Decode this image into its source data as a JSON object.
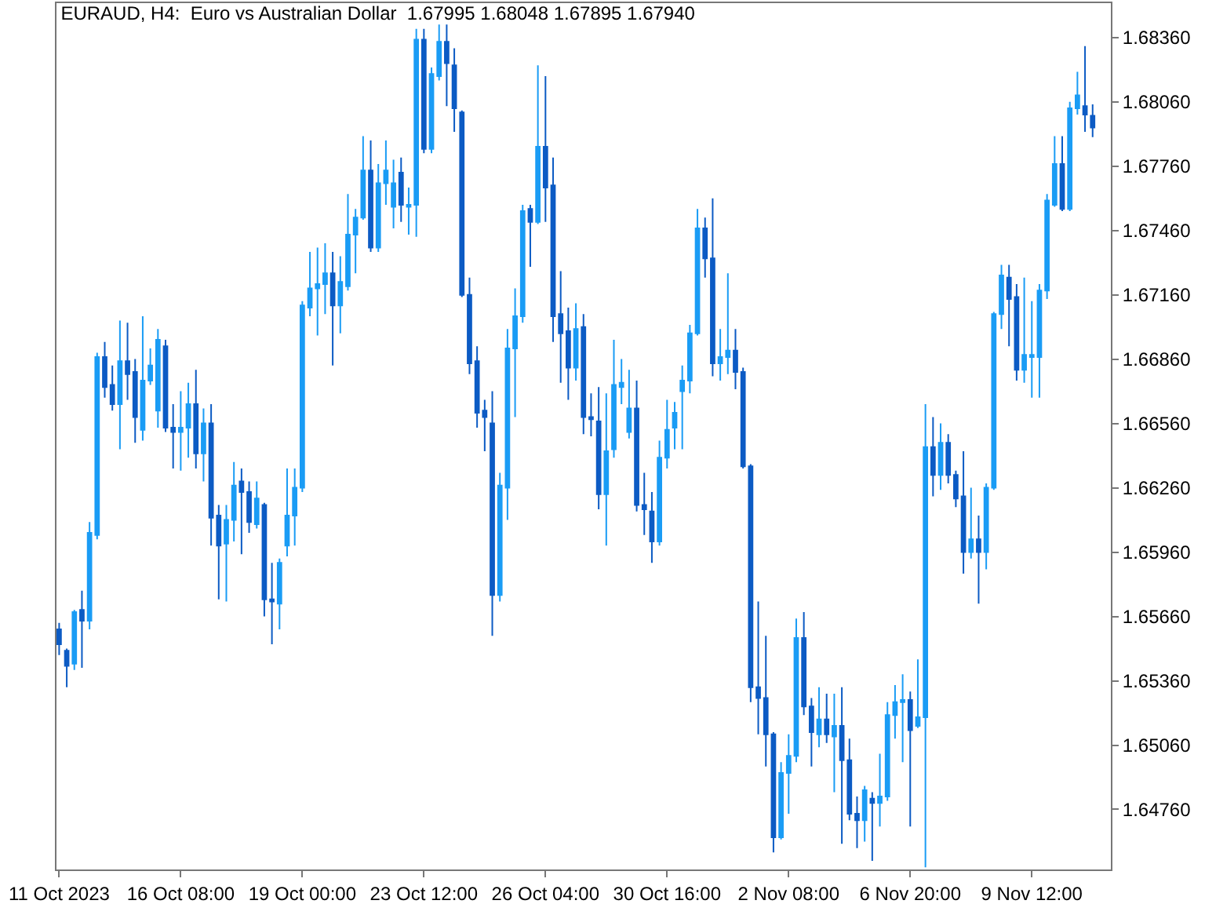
{
  "chart_data": {
    "type": "candlestick",
    "title": "EURAUD, H4:  Euro vs Australian Dollar  1.67995 1.68048 1.67895 1.67940",
    "categories": [
      "11 Oct 2023",
      null,
      null,
      null,
      null,
      null,
      null,
      null,
      null,
      null,
      null,
      null,
      null,
      null,
      null,
      null,
      "16 Oct 08:00",
      null,
      null,
      null,
      null,
      null,
      null,
      null,
      null,
      null,
      null,
      null,
      null,
      null,
      null,
      null,
      "19 Oct 00:00",
      null,
      null,
      null,
      null,
      null,
      null,
      null,
      null,
      null,
      null,
      null,
      null,
      null,
      null,
      null,
      "23 Oct 12:00",
      null,
      null,
      null,
      null,
      null,
      null,
      null,
      null,
      null,
      null,
      null,
      null,
      null,
      null,
      null,
      "26 Oct 04:00",
      null,
      null,
      null,
      null,
      null,
      null,
      null,
      null,
      null,
      null,
      null,
      null,
      null,
      null,
      null,
      "30 Oct 16:00",
      null,
      null,
      null,
      null,
      null,
      null,
      null,
      null,
      null,
      null,
      null,
      null,
      null,
      null,
      null,
      "2 Nov 08:00",
      null,
      null,
      null,
      null,
      null,
      null,
      null,
      null,
      null,
      null,
      null,
      null,
      null,
      null,
      null,
      "6 Nov 20:00",
      null,
      null,
      null,
      null,
      null,
      null,
      null,
      null,
      null,
      null,
      null,
      null,
      null,
      null,
      null,
      "9 Nov 12:00",
      null,
      null,
      null,
      null,
      null,
      null,
      null,
      null
    ],
    "ohlc": [
      [
        1.656,
        1.6563,
        1.6548,
        1.6553
      ],
      [
        1.655,
        1.6551,
        1.6533,
        1.6543
      ],
      [
        1.6544,
        1.6569,
        1.6541,
        1.6568
      ],
      [
        1.6569,
        1.6578,
        1.6542,
        1.6564
      ],
      [
        1.6564,
        1.661,
        1.656,
        1.6605
      ],
      [
        1.6604,
        1.6689,
        1.6602,
        1.6687
      ],
      [
        1.6687,
        1.6694,
        1.6668,
        1.6673
      ],
      [
        1.6674,
        1.6683,
        1.6662,
        1.6665
      ],
      [
        1.6665,
        1.6704,
        1.6644,
        1.6685
      ],
      [
        1.6685,
        1.6703,
        1.6667,
        1.6679
      ],
      [
        1.668,
        1.6686,
        1.6647,
        1.6659
      ],
      [
        1.6653,
        1.6706,
        1.6648,
        1.6676
      ],
      [
        1.6676,
        1.6691,
        1.6674,
        1.6683
      ],
      [
        1.6662,
        1.67,
        1.6654,
        1.6695
      ],
      [
        1.6692,
        1.6695,
        1.6652,
        1.6654
      ],
      [
        1.6654,
        1.6665,
        1.6635,
        1.6652
      ],
      [
        1.6652,
        1.6671,
        1.6634,
        1.6654
      ],
      [
        1.6654,
        1.6675,
        1.664,
        1.6665
      ],
      [
        1.6665,
        1.6681,
        1.6635,
        1.6642
      ],
      [
        1.6642,
        1.6663,
        1.6629,
        1.6656
      ],
      [
        1.6656,
        1.6665,
        1.6599,
        1.6612
      ],
      [
        1.6613,
        1.6618,
        1.6574,
        1.6599
      ],
      [
        1.66,
        1.6618,
        1.6573,
        1.6611
      ],
      [
        1.6611,
        1.6638,
        1.6601,
        1.6627
      ],
      [
        1.6629,
        1.6635,
        1.6595,
        1.6624
      ],
      [
        1.6624,
        1.6629,
        1.6605,
        1.661
      ],
      [
        1.6609,
        1.6629,
        1.6607,
        1.6621
      ],
      [
        1.6618,
        1.6619,
        1.6566,
        1.6574
      ],
      [
        1.6574,
        1.6591,
        1.6553,
        1.6573
      ],
      [
        1.6572,
        1.6593,
        1.656,
        1.6591
      ],
      [
        1.6599,
        1.6635,
        1.6594,
        1.6613
      ],
      [
        1.6613,
        1.6635,
        1.6599,
        1.6626
      ],
      [
        1.6626,
        1.6713,
        1.6624,
        1.6711
      ],
      [
        1.671,
        1.6736,
        1.6706,
        1.6719
      ],
      [
        1.6719,
        1.6738,
        1.6697,
        1.6721
      ],
      [
        1.6721,
        1.674,
        1.6707,
        1.6726
      ],
      [
        1.6726,
        1.6736,
        1.6683,
        1.6711
      ],
      [
        1.6711,
        1.6734,
        1.6698,
        1.6722
      ],
      [
        1.672,
        1.6763,
        1.6718,
        1.6744
      ],
      [
        1.6744,
        1.6756,
        1.6726,
        1.6752
      ],
      [
        1.6752,
        1.679,
        1.6751,
        1.6774
      ],
      [
        1.6774,
        1.6788,
        1.6736,
        1.6738
      ],
      [
        1.6738,
        1.6777,
        1.6736,
        1.6768
      ],
      [
        1.6768,
        1.6788,
        1.6758,
        1.6774
      ],
      [
        1.6757,
        1.6779,
        1.6747,
        1.6768
      ],
      [
        1.6773,
        1.678,
        1.675,
        1.6758
      ],
      [
        1.6757,
        1.6766,
        1.6744,
        1.6758
      ],
      [
        1.6758,
        1.684,
        1.6743,
        1.6835
      ],
      [
        1.6835,
        1.684,
        1.6782,
        1.6784
      ],
      [
        1.6784,
        1.6822,
        1.6782,
        1.6819
      ],
      [
        1.6818,
        1.6842,
        1.6816,
        1.6834
      ],
      [
        1.6834,
        1.6842,
        1.6804,
        1.6824
      ],
      [
        1.6823,
        1.6831,
        1.6792,
        1.6803
      ],
      [
        1.6801,
        1.6802,
        1.6715,
        1.6716
      ],
      [
        1.6716,
        1.6724,
        1.6679,
        1.6684
      ],
      [
        1.6685,
        1.6692,
        1.6654,
        1.6661
      ],
      [
        1.6662,
        1.6667,
        1.6643,
        1.6659
      ],
      [
        1.6656,
        1.6671,
        1.6557,
        1.6576
      ],
      [
        1.6576,
        1.6633,
        1.6573,
        1.6627
      ],
      [
        1.6626,
        1.67,
        1.6611,
        1.6691
      ],
      [
        1.6691,
        1.6719,
        1.6659,
        1.6706
      ],
      [
        1.6706,
        1.6758,
        1.6703,
        1.6755
      ],
      [
        1.6756,
        1.6758,
        1.6729,
        1.675
      ],
      [
        1.675,
        1.6823,
        1.6749,
        1.6785
      ],
      [
        1.6785,
        1.6818,
        1.675,
        1.6766
      ],
      [
        1.6767,
        1.678,
        1.6694,
        1.6706
      ],
      [
        1.6707,
        1.6727,
        1.6675,
        1.6698
      ],
      [
        1.6699,
        1.671,
        1.6667,
        1.6682
      ],
      [
        1.6682,
        1.6712,
        1.6676,
        1.67
      ],
      [
        1.6701,
        1.6707,
        1.6651,
        1.6659
      ],
      [
        1.6659,
        1.667,
        1.665,
        1.6658
      ],
      [
        1.6657,
        1.6673,
        1.6616,
        1.6623
      ],
      [
        1.6623,
        1.667,
        1.6599,
        1.6643
      ],
      [
        1.6644,
        1.6695,
        1.664,
        1.6674
      ],
      [
        1.6673,
        1.6686,
        1.6665,
        1.6675
      ],
      [
        1.6652,
        1.6681,
        1.6649,
        1.6663
      ],
      [
        1.6663,
        1.6676,
        1.6615,
        1.6618
      ],
      [
        1.6618,
        1.6633,
        1.6604,
        1.6616
      ],
      [
        1.6615,
        1.6624,
        1.6591,
        1.6601
      ],
      [
        1.6601,
        1.6648,
        1.6599,
        1.664
      ],
      [
        1.664,
        1.6667,
        1.6635,
        1.6653
      ],
      [
        1.6654,
        1.6666,
        1.6644,
        1.6661
      ],
      [
        1.6671,
        1.6683,
        1.6644,
        1.6676
      ],
      [
        1.6676,
        1.6702,
        1.667,
        1.6698
      ],
      [
        1.6698,
        1.6756,
        1.6697,
        1.6747
      ],
      [
        1.6747,
        1.6752,
        1.6724,
        1.6733
      ],
      [
        1.6733,
        1.6761,
        1.6678,
        1.6684
      ],
      [
        1.6684,
        1.67,
        1.6676,
        1.6687
      ],
      [
        1.6687,
        1.6726,
        1.6679,
        1.669
      ],
      [
        1.669,
        1.67,
        1.6672,
        1.668
      ],
      [
        1.668,
        1.6682,
        1.6635,
        1.6636
      ],
      [
        1.6636,
        1.6637,
        1.6526,
        1.6533
      ],
      [
        1.6533,
        1.6573,
        1.6511,
        1.6528
      ],
      [
        1.6528,
        1.6557,
        1.6496,
        1.6511
      ],
      [
        1.6511,
        1.6512,
        1.6456,
        1.6463
      ],
      [
        1.6463,
        1.6498,
        1.6462,
        1.6493
      ],
      [
        1.6493,
        1.6511,
        1.6474,
        1.6501
      ],
      [
        1.6501,
        1.6565,
        1.6498,
        1.6556
      ],
      [
        1.6556,
        1.6568,
        1.652,
        1.6524
      ],
      [
        1.6524,
        1.6528,
        1.6496,
        1.6512
      ],
      [
        1.6511,
        1.6533,
        1.6505,
        1.6518
      ],
      [
        1.6518,
        1.653,
        1.6507,
        1.6511
      ],
      [
        1.651,
        1.653,
        1.6484,
        1.6515
      ],
      [
        1.6515,
        1.6533,
        1.646,
        1.6499
      ],
      [
        1.6499,
        1.6509,
        1.6471,
        1.6474
      ],
      [
        1.6474,
        1.6482,
        1.6458,
        1.6471
      ],
      [
        1.6471,
        1.6487,
        1.6461,
        1.6485
      ],
      [
        1.6481,
        1.6484,
        1.6452,
        1.6479
      ],
      [
        1.6479,
        1.6502,
        1.6468,
        1.6482
      ],
      [
        1.6482,
        1.6526,
        1.648,
        1.652
      ],
      [
        1.652,
        1.6534,
        1.6509,
        1.6526
      ],
      [
        1.6526,
        1.6539,
        1.6498,
        1.6527
      ],
      [
        1.6527,
        1.6531,
        1.6468,
        1.6513
      ],
      [
        1.6515,
        1.6546,
        1.6514,
        1.6519
      ],
      [
        1.6519,
        1.6665,
        1.6449,
        1.6645
      ],
      [
        1.6645,
        1.6659,
        1.6622,
        1.6632
      ],
      [
        1.6632,
        1.6656,
        1.6625,
        1.6647
      ],
      [
        1.6647,
        1.6651,
        1.6628,
        1.6632
      ],
      [
        1.6632,
        1.6634,
        1.6617,
        1.6621
      ],
      [
        1.6622,
        1.6643,
        1.6586,
        1.6596
      ],
      [
        1.6596,
        1.6626,
        1.6593,
        1.6602
      ],
      [
        1.6602,
        1.6613,
        1.6572,
        1.6596
      ],
      [
        1.6596,
        1.6628,
        1.6588,
        1.6626
      ],
      [
        1.6626,
        1.6708,
        1.6625,
        1.6707
      ],
      [
        1.6707,
        1.673,
        1.67,
        1.6725
      ],
      [
        1.6724,
        1.673,
        1.6692,
        1.6714
      ],
      [
        1.6715,
        1.6721,
        1.6676,
        1.6681
      ],
      [
        1.6681,
        1.6724,
        1.6675,
        1.6688
      ],
      [
        1.6687,
        1.6713,
        1.6668,
        1.6688
      ],
      [
        1.6687,
        1.6721,
        1.6668,
        1.6718
      ],
      [
        1.6718,
        1.6763,
        1.6714,
        1.676
      ],
      [
        1.6758,
        1.679,
        1.6757,
        1.6777
      ],
      [
        1.6777,
        1.679,
        1.6755,
        1.6756
      ],
      [
        1.6756,
        1.6806,
        1.6755,
        1.6803
      ],
      [
        1.6803,
        1.682,
        1.68,
        1.6809
      ],
      [
        1.6804,
        1.6832,
        1.6792,
        1.68
      ],
      [
        1.67995,
        1.68048,
        1.67895,
        1.6794
      ]
    ],
    "colors": [
      "#0c5bc4",
      "#0c5bc4",
      "#1a9cf5",
      "#0c5bc4",
      "#1a9cf5",
      "#1a9cf5",
      "#0c5bc4",
      "#0c5bc4",
      "#1a9cf5",
      "#0c5bc4",
      "#0c5bc4",
      "#1a9cf5",
      "#1a9cf5",
      "#1a9cf5",
      "#0c5bc4",
      "#0c5bc4",
      "#1a9cf5",
      "#1a9cf5",
      "#0c5bc4",
      "#1a9cf5",
      "#0c5bc4",
      "#0c5bc4",
      "#1a9cf5",
      "#1a9cf5",
      "#0c5bc4",
      "#0c5bc4",
      "#1a9cf5",
      "#0c5bc4",
      "#0c5bc4",
      "#1a9cf5",
      "#1a9cf5",
      "#1a9cf5",
      "#1a9cf5",
      "#1a9cf5",
      "#1a9cf5",
      "#1a9cf5",
      "#0c5bc4",
      "#1a9cf5",
      "#1a9cf5",
      "#1a9cf5",
      "#1a9cf5",
      "#0c5bc4",
      "#1a9cf5",
      "#1a9cf5",
      "#1a9cf5",
      "#0c5bc4",
      "#1a9cf5",
      "#1a9cf5",
      "#0c5bc4",
      "#1a9cf5",
      "#1a9cf5",
      "#0c5bc4",
      "#0c5bc4",
      "#0c5bc4",
      "#0c5bc4",
      "#0c5bc4",
      "#0c5bc4",
      "#0c5bc4",
      "#1a9cf5",
      "#1a9cf5",
      "#1a9cf5",
      "#1a9cf5",
      "#0c5bc4",
      "#1a9cf5",
      "#0c5bc4",
      "#0c5bc4",
      "#0c5bc4",
      "#0c5bc4",
      "#1a9cf5",
      "#0c5bc4",
      "#0c5bc4",
      "#0c5bc4",
      "#1a9cf5",
      "#1a9cf5",
      "#1a9cf5",
      "#1a9cf5",
      "#0c5bc4",
      "#0c5bc4",
      "#0c5bc4",
      "#1a9cf5",
      "#1a9cf5",
      "#1a9cf5",
      "#1a9cf5",
      "#1a9cf5",
      "#1a9cf5",
      "#0c5bc4",
      "#0c5bc4",
      "#1a9cf5",
      "#1a9cf5",
      "#0c5bc4",
      "#0c5bc4",
      "#0c5bc4",
      "#0c5bc4",
      "#0c5bc4",
      "#0c5bc4",
      "#1a9cf5",
      "#1a9cf5",
      "#1a9cf5",
      "#0c5bc4",
      "#0c5bc4",
      "#1a9cf5",
      "#0c5bc4",
      "#1a9cf5",
      "#0c5bc4",
      "#0c5bc4",
      "#0c5bc4",
      "#1a9cf5",
      "#0c5bc4",
      "#1a9cf5",
      "#1a9cf5",
      "#1a9cf5",
      "#1a9cf5",
      "#0c5bc4",
      "#1a9cf5",
      "#1a9cf5",
      "#0c5bc4",
      "#1a9cf5",
      "#0c5bc4",
      "#0c5bc4",
      "#0c5bc4",
      "#1a9cf5",
      "#0c5bc4",
      "#1a9cf5",
      "#1a9cf5",
      "#1a9cf5",
      "#0c5bc4",
      "#0c5bc4",
      "#1a9cf5",
      "#1a9cf5",
      "#1a9cf5",
      "#1a9cf5",
      "#1a9cf5",
      "#0c5bc4",
      "#1a9cf5",
      "#1a9cf5",
      "#0c5bc4",
      "#0c5bc4"
    ],
    "ylim": [
      1.6448,
      1.6852
    ],
    "yticks": [
      {
        "value": 1.6476,
        "label": "1.64760"
      },
      {
        "value": 1.6506,
        "label": "1.65060"
      },
      {
        "value": 1.6536,
        "label": "1.65360"
      },
      {
        "value": 1.6566,
        "label": "1.65660"
      },
      {
        "value": 1.6596,
        "label": "1.65960"
      },
      {
        "value": 1.6626,
        "label": "1.66260"
      },
      {
        "value": 1.6656,
        "label": "1.66560"
      },
      {
        "value": 1.6686,
        "label": "1.66860"
      },
      {
        "value": 1.6716,
        "label": "1.67160"
      },
      {
        "value": 1.6746,
        "label": "1.67460"
      },
      {
        "value": 1.6776,
        "label": "1.67760"
      },
      {
        "value": 1.6806,
        "label": "1.68060"
      },
      {
        "value": 1.6836,
        "label": "1.68360"
      }
    ],
    "grid": false
  }
}
